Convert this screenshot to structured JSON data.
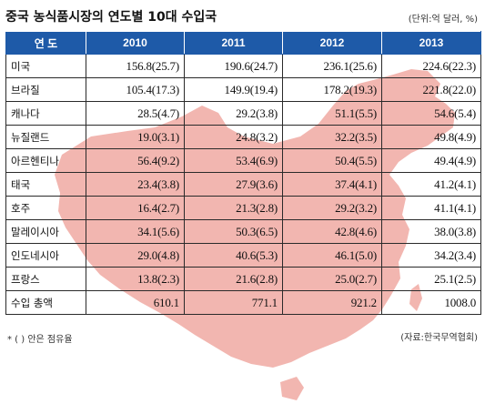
{
  "title": "중국 농식품시장의 연도별 10대 수입국",
  "unit": "(단위:억 달러, %)",
  "chart_data": {
    "type": "table",
    "columns": [
      "연 도",
      "2010",
      "2011",
      "2012",
      "2013"
    ],
    "rows": [
      [
        "미국",
        "156.8(25.7)",
        "190.6(24.7)",
        "236.1(25.6)",
        "224.6(22.3)"
      ],
      [
        "브라질",
        "105.4(17.3)",
        "149.9(19.4)",
        "178.2(19.3)",
        "221.8(22.0)"
      ],
      [
        "캐나다",
        "28.5(4.7)",
        "29.2(3.8)",
        "51.1(5.5)",
        "54.6(5.4)"
      ],
      [
        "뉴질랜드",
        "19.0(3.1)",
        "24.8(3.2)",
        "32.2(3.5)",
        "49.8(4.9)"
      ],
      [
        "아르헨티나",
        "56.4(9.2)",
        "53.4(6.9)",
        "50.4(5.5)",
        "49.4(4.9)"
      ],
      [
        "태국",
        "23.4(3.8)",
        "27.9(3.6)",
        "37.4(4.1)",
        "41.2(4.1)"
      ],
      [
        "호주",
        "16.4(2.7)",
        "21.3(2.8)",
        "29.2(3.2)",
        "41.1(4.1)"
      ],
      [
        "말레이시아",
        "34.1(5.6)",
        "50.3(6.5)",
        "42.8(4.6)",
        "38.0(3.8)"
      ],
      [
        "인도네시아",
        "29.0(4.8)",
        "40.6(5.3)",
        "46.1(5.0)",
        "34.2(3.4)"
      ],
      [
        "프랑스",
        "13.8(2.3)",
        "21.6(2.8)",
        "25.0(2.7)",
        "25.1(2.5)"
      ],
      [
        "수입 총액",
        "610.1",
        "771.1",
        "921.2",
        "1008.0"
      ]
    ]
  },
  "note": "* ( ) 안은 점유율",
  "source": "(자료:한국무역협회)",
  "colors": {
    "header_bg": "#1e5aa8",
    "map_fill": "#f2b6b0"
  }
}
